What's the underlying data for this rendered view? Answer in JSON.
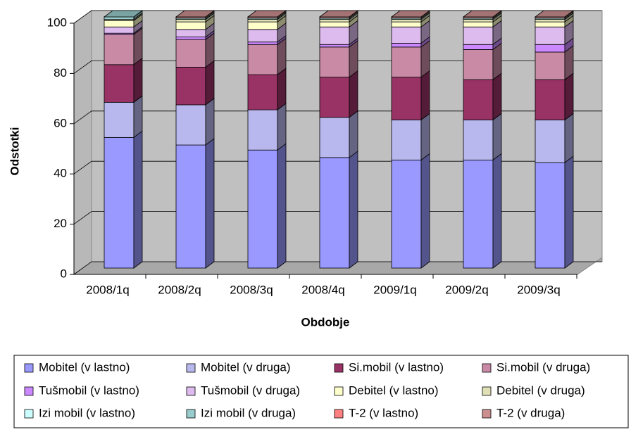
{
  "chart_data": {
    "type": "bar3d_stacked",
    "y_label": "Odstotki",
    "x_label": "Obdobje",
    "categories": [
      "2008/1q",
      "2008/2q",
      "2008/3q",
      "2008/4q",
      "2009/1q",
      "2009/2q",
      "2009/3q"
    ],
    "ylim": [
      0,
      100
    ],
    "yticks": [
      0,
      20,
      40,
      60,
      80,
      100
    ],
    "grid": true,
    "series": [
      {
        "name": "Mobitel (v lastno)",
        "color": "#9999ff",
        "values": [
          52,
          49,
          47,
          44,
          43,
          43,
          42
        ]
      },
      {
        "name": "Mobitel (v druga)",
        "color": "#b8b8ee",
        "values": [
          14,
          16,
          16,
          16,
          16,
          16,
          17
        ]
      },
      {
        "name": "Si.mobil (v lastno)",
        "color": "#993366",
        "values": [
          15,
          15,
          14,
          16,
          17,
          16,
          16
        ]
      },
      {
        "name": "Si.mobil (v druga)",
        "color": "#c98aa6",
        "values": [
          12,
          11,
          12,
          12,
          12,
          12,
          11
        ]
      },
      {
        "name": "Tušmobil (v lastno)",
        "color": "#cc88ff",
        "values": [
          0.5,
          1,
          1,
          1,
          1.5,
          2,
          3
        ]
      },
      {
        "name": "Tušmobil (v druga)",
        "color": "#ddbbee",
        "values": [
          2.5,
          3,
          5,
          7,
          6.5,
          7,
          7
        ]
      },
      {
        "name": "Debitel (v lastno)",
        "color": "#ffffcc",
        "values": [
          2.5,
          3,
          3,
          2,
          2,
          2,
          2
        ]
      },
      {
        "name": "Debitel (v druga)",
        "color": "#dfe0b8",
        "values": [
          0.5,
          1,
          1,
          1,
          1,
          1,
          1
        ]
      },
      {
        "name": "Izi mobil (v lastno)",
        "color": "#ccffff",
        "values": [
          0,
          0,
          0,
          0,
          0,
          0,
          0
        ]
      },
      {
        "name": "Izi mobil (v druga)",
        "color": "#99cccc",
        "values": [
          1,
          0.5,
          0.5,
          0.5,
          0.5,
          0.5,
          0.5
        ]
      },
      {
        "name": "T-2 (v lastno)",
        "color": "#ff8080",
        "values": [
          0,
          0,
          0,
          0,
          0,
          0,
          0
        ]
      },
      {
        "name": "T-2 (v druga)",
        "color": "#cc8f8f",
        "values": [
          0,
          0.5,
          0.5,
          0.5,
          0.5,
          0.5,
          0.5
        ]
      }
    ]
  }
}
